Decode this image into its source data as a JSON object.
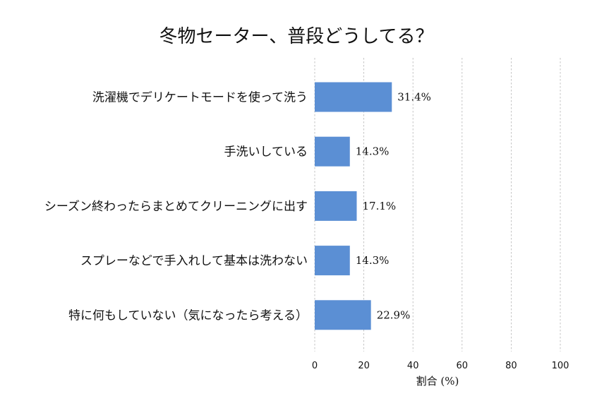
{
  "chart_data": {
    "type": "bar",
    "orientation": "horizontal",
    "title": "冬物セーター、普段どうしてる？",
    "xlabel": "割合 (%)",
    "ylabel": "",
    "xlim": [
      0,
      100
    ],
    "xticks": [
      0,
      20,
      40,
      60,
      80,
      100
    ],
    "grid": true,
    "bar_color": "#5b8fd4",
    "categories": [
      "洗濯機でデリケートモードを使って洗う",
      "手洗いしている",
      "シーズン終わったらまとめてクリーニングに出す",
      "スプレーなどで手入れして基本は洗わない",
      "特に何もしていない（気になったら考える）"
    ],
    "values": [
      31.4,
      14.3,
      17.1,
      14.3,
      22.9
    ],
    "value_labels": [
      "31.4%",
      "14.3%",
      "17.1%",
      "14.3%",
      "22.9%"
    ]
  }
}
